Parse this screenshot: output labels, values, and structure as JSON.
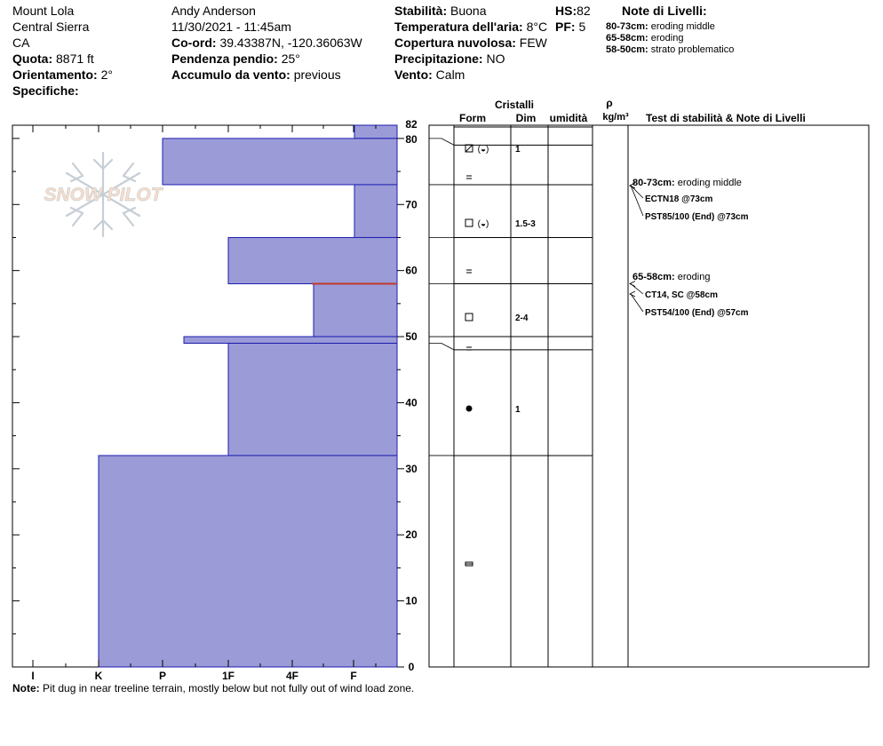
{
  "header": {
    "col1": [
      "Mount Lola",
      "Central Sierra",
      "CA"
    ],
    "quota": {
      "label": "Quota:",
      "value": "8871 ft"
    },
    "orientamento": {
      "label": "Orientamento:",
      "value": "2°"
    },
    "specifiche": {
      "label": "Specifiche:",
      "value": ""
    },
    "observer": "Andy Anderson",
    "datetime": "11/30/2021 - 11:45am",
    "coord": {
      "label": "Co-ord:",
      "value": "39.43387N, -120.36063W"
    },
    "pendenza": {
      "label": "Pendenza pendio:",
      "value": "25°"
    },
    "accumulo": {
      "label": "Accumulo da vento:",
      "value": "previous"
    },
    "stabilita": {
      "label": "Stabilità:",
      "value": "Buona"
    },
    "temperatura": {
      "label": "Temperatura dell'aria:",
      "value": "8°C"
    },
    "copertura": {
      "label": "Copertura nuvolosa:",
      "value": "FEW"
    },
    "precipitazione": {
      "label": "Precipitazione:",
      "value": "NO"
    },
    "vento": {
      "label": "Vento:",
      "value": "Calm"
    },
    "hs": {
      "label": "HS:",
      "value": "82"
    },
    "pf": {
      "label": "PF:",
      "value": "5"
    }
  },
  "layer_notes": {
    "title": "Note di Livelli:",
    "items": [
      {
        "range": "80-73cm:",
        "text": "eroding middle"
      },
      {
        "range": "65-58cm:",
        "text": "eroding"
      },
      {
        "range": "58-50cm:",
        "text": "strato problematico"
      }
    ]
  },
  "watermark": "SNOW PILOT",
  "columns": {
    "cristalli": "Cristalli",
    "form": "Form",
    "dim": "Dim",
    "umidita": "umidità",
    "rho": "ρ",
    "density_unit": "kg/m³",
    "test": "Test di stabilità & Note di Livelli"
  },
  "note": {
    "label": "Note:",
    "text": "Pit dug in near treeline terrain, mostly below but not fully out of wind load zone."
  },
  "colors": {
    "bar_fill": "#9b9bd8",
    "bar_stroke": "#1c1cb0",
    "problem_line": "#c0392b"
  },
  "chart_data": {
    "type": "bar",
    "orientation": "horizontal",
    "ylabel": "",
    "ylim": [
      0,
      82
    ],
    "y_ticks": [
      0,
      10,
      20,
      30,
      40,
      50,
      60,
      70,
      80,
      82
    ],
    "hardness_scale": [
      "I",
      "K",
      "P",
      "1F",
      "4F",
      "F"
    ],
    "x_ticks": [
      "I",
      "K",
      "P",
      "1F",
      "4F",
      "F"
    ],
    "layers": [
      {
        "bottom": 80,
        "top": 82,
        "hardness": "F-"
      },
      {
        "bottom": 73,
        "top": 80,
        "hardness": "P"
      },
      {
        "bottom": 65,
        "top": 73,
        "hardness": "F-"
      },
      {
        "bottom": 58,
        "top": 65,
        "hardness": "1F"
      },
      {
        "bottom": 50,
        "top": 58,
        "hardness": "4F+"
      },
      {
        "bottom": 49,
        "top": 50,
        "hardness": "P+"
      },
      {
        "bottom": 32,
        "top": 49,
        "hardness": "1F"
      },
      {
        "bottom": 0,
        "top": 32,
        "hardness": "K"
      }
    ],
    "problem_layer_at": 58,
    "crystal_rows": [
      {
        "bottom": 79,
        "top": 82,
        "form": "DF(PP)",
        "dim": "1"
      },
      {
        "bottom": 73,
        "top": 79,
        "form": "RG",
        "dim": ""
      },
      {
        "bottom": 65,
        "top": 73,
        "form": "FC(PP)",
        "dim": "1.5-3"
      },
      {
        "bottom": 58,
        "top": 65,
        "form": "RG",
        "dim": ""
      },
      {
        "bottom": 50,
        "top": 58,
        "form": "FC",
        "dim": "2-4"
      },
      {
        "bottom": 48,
        "top": 50,
        "form": "RG",
        "dim": ""
      },
      {
        "bottom": 32,
        "top": 48,
        "form": "MF",
        "dim": "1"
      },
      {
        "bottom": 0,
        "top": 32,
        "form": "IF",
        "dim": ""
      }
    ],
    "tests": [
      {
        "group": 1,
        "kind": "note",
        "label": "80-73cm:",
        "text": "eroding middle"
      },
      {
        "group": 1,
        "kind": "test",
        "text": "ECTN18 @73cm",
        "depth": 73
      },
      {
        "group": 1,
        "kind": "test",
        "text": "PST85/100 (End) @73cm",
        "depth": 73
      },
      {
        "group": 2,
        "kind": "note",
        "label": "65-58cm:",
        "text": "eroding"
      },
      {
        "group": 2,
        "kind": "test",
        "text": "CT14, SC @58cm",
        "depth": 58
      },
      {
        "group": 2,
        "kind": "test",
        "text": "PST54/100 (End) @57cm",
        "depth": 57
      }
    ]
  }
}
